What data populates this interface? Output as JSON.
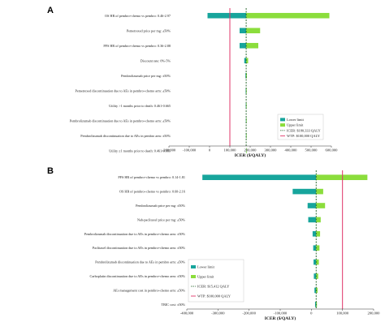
{
  "colors": {
    "lower": "#17a59c",
    "upper": "#8bdd3c",
    "icer_line": "#1b5e20",
    "wtp_line": "#e03468",
    "axis": "#333333"
  },
  "chart_data": [
    {
      "panel": "A",
      "type": "bar",
      "orientation": "horizontal-tornado",
      "xlabel": "ICER ($/QALY)",
      "xlim": [
        -200000,
        600000
      ],
      "xticks": [
        -200000,
        -100000,
        0,
        100000,
        200000,
        300000,
        400000,
        500000,
        600000
      ],
      "xtick_labels": [
        "-200,000",
        "-100,000",
        "0",
        "100,000",
        "200,000",
        "300,000",
        "400,000",
        "500,000",
        "600,000"
      ],
      "base_icer": 180333,
      "wtp": 100000,
      "categories": [
        "OS HR of pembro+chemo vs pembro: 0.46-2.97",
        "Pemetrexed price per mg: ±50%",
        "PFS HR of pembro+chemo vs pembro: 0.36-2.88",
        "Discount rate: 0%-5%",
        "Pembrolizumab price per mg: ±50%",
        "Pemetrexed discontinuation due to AEs in pembro+chemo arm: ±50%",
        "Utility >1 months prior to death: 0.461-0.665",
        "Pembrolizumab discontinuation due to AEs in pembro+chemo arm: ±50%",
        "Pembrolizumab discontinuation due to AEs in pembro arm: ±50%",
        "Utility ≤1 months prior to death: 0.461-0.665"
      ],
      "series": [
        {
          "name": "Lower limit",
          "values": [
            -10000,
            148000,
            148000,
            171000,
            177000,
            178000,
            178500,
            179000,
            179300,
            179600
          ]
        },
        {
          "name": "Upper limit",
          "values": [
            590000,
            249000,
            240000,
            190000,
            184000,
            183000,
            182500,
            181600,
            181400,
            181100
          ]
        }
      ],
      "legend": {
        "position": "bottom-right",
        "entries": [
          "Lower limit",
          "Upper limit",
          "ICER: $180,333 QALY",
          "WTP: $100,000 QALY"
        ]
      }
    },
    {
      "panel": "B",
      "type": "bar",
      "orientation": "horizontal-tornado",
      "xlabel": "ICER ($/QALY)",
      "xlim": [
        -400000,
        200000
      ],
      "xticks": [
        -400000,
        -300000,
        -200000,
        -100000,
        0,
        100000,
        200000
      ],
      "xtick_labels": [
        "-400,000",
        "-300,000",
        "-200,000",
        "-100,000",
        "0",
        "100,000",
        "200,000"
      ],
      "base_icer": 15412,
      "wtp": 100000,
      "categories": [
        "PFS HR of pembro+chemo vs pembro: 0.14-1.81",
        "OS HR of pembro+chemo vs pembro: 0.60-2.16",
        "Pembrolizumab price per mg: ±50%",
        "Nab-paclitaxel price per mg: ±50%",
        "Pembrolizumab discontinuation due to AEs in pembro+chemo arm: ±50%",
        "Paclitaxel discontinuation due to AEs in pembro+chemo arm: ±50%",
        "Pembrolizumab discontinuation due to AEs in pembro arm: ±50%",
        "Carboplatin discontinuation due to AEs in pembro+chemo arm: ±50%",
        "AEs management cost in pembro+chemo arm: ±50%",
        "TBIC cost: ±50%"
      ],
      "series": [
        {
          "name": "Lower limit",
          "values": [
            -350000,
            -60000,
            -12000,
            -10000,
            4000,
            6000,
            7000,
            8000,
            10000,
            12000
          ]
        },
        {
          "name": "Upper limit",
          "values": [
            180000,
            38000,
            44000,
            30000,
            28000,
            26000,
            24000,
            22000,
            20000,
            18000
          ]
        }
      ],
      "legend": {
        "position": "bottom-left",
        "entries": [
          "Lower limit",
          "Upper limit",
          "ICER: $15,412 QALY",
          "WTP: $100,000 QALY"
        ]
      }
    }
  ]
}
